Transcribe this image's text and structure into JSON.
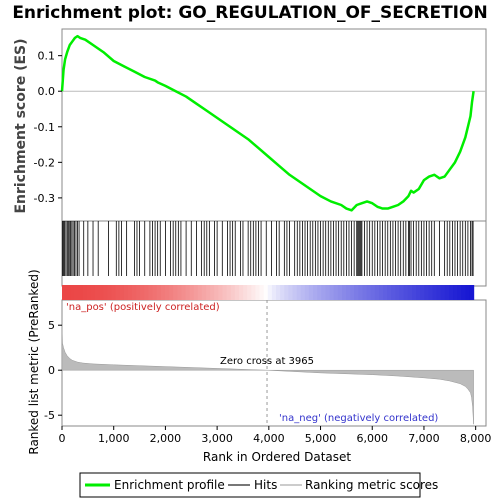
{
  "chart_data": {
    "type": "line",
    "title": "Enrichment plot: GO_REGULATION_OF_SECRETION",
    "xlabel": "Rank in Ordered Dataset",
    "enrichment_panel": {
      "ylabel": "Enrichment score (ES)",
      "xlim": [
        0,
        8200
      ],
      "ylim": [
        -0.365,
        0.175
      ],
      "yticks": [
        0.1,
        0.0,
        -0.1,
        -0.2,
        -0.3
      ],
      "ytick_labels": [
        "0.1",
        "0.0",
        "-0.1",
        "-0.2",
        "-0.3"
      ],
      "series": [
        {
          "name": "Enrichment profile",
          "color": "#00ee00",
          "x": [
            0,
            30,
            60,
            100,
            150,
            200,
            250,
            300,
            350,
            450,
            600,
            800,
            1000,
            1200,
            1400,
            1600,
            1800,
            1850,
            2000,
            2200,
            2400,
            2600,
            2800,
            3000,
            3200,
            3400,
            3600,
            3800,
            4000,
            4200,
            4400,
            4600,
            4800,
            5000,
            5200,
            5400,
            5500,
            5600,
            5700,
            5800,
            5900,
            6000,
            6100,
            6200,
            6300,
            6400,
            6500,
            6600,
            6700,
            6750,
            6800,
            6900,
            7000,
            7100,
            7200,
            7300,
            7400,
            7500,
            7600,
            7700,
            7750,
            7800,
            7850,
            7900,
            7930,
            7960
          ],
          "y": [
            0.0,
            0.06,
            0.09,
            0.11,
            0.13,
            0.14,
            0.15,
            0.155,
            0.15,
            0.145,
            0.13,
            0.11,
            0.085,
            0.07,
            0.055,
            0.04,
            0.03,
            0.025,
            0.015,
            0.0,
            -0.015,
            -0.035,
            -0.055,
            -0.075,
            -0.095,
            -0.115,
            -0.135,
            -0.16,
            -0.185,
            -0.21,
            -0.235,
            -0.255,
            -0.275,
            -0.295,
            -0.31,
            -0.32,
            -0.33,
            -0.335,
            -0.32,
            -0.315,
            -0.31,
            -0.315,
            -0.325,
            -0.33,
            -0.33,
            -0.325,
            -0.32,
            -0.31,
            -0.295,
            -0.28,
            -0.285,
            -0.275,
            -0.25,
            -0.24,
            -0.235,
            -0.245,
            -0.24,
            -0.22,
            -0.2,
            -0.17,
            -0.15,
            -0.13,
            -0.1,
            -0.07,
            -0.03,
            0.0
          ]
        }
      ]
    },
    "hits_panel": {
      "series_name": "Hits",
      "hit_positions": [
        10,
        30,
        50,
        75,
        100,
        120,
        140,
        165,
        190,
        215,
        240,
        270,
        300,
        330,
        420,
        500,
        600,
        700,
        900,
        1050,
        1100,
        1150,
        1250,
        1400,
        1450,
        1500,
        1600,
        1700,
        1750,
        1800,
        1850,
        1900,
        2000,
        2100,
        2150,
        2200,
        2250,
        2300,
        2400,
        2500,
        2600,
        2700,
        2750,
        2800,
        2850,
        2950,
        3000,
        3100,
        3200,
        3250,
        3300,
        3350,
        3450,
        3500,
        3600,
        3650,
        3700,
        3750,
        3800,
        3850,
        3950,
        4050,
        4150,
        4200,
        4300,
        4350,
        4400,
        4500,
        4550,
        4600,
        4650,
        4700,
        4750,
        4800,
        4850,
        4900,
        4950,
        5000,
        5050,
        5100,
        5150,
        5200,
        5250,
        5300,
        5350,
        5400,
        5450,
        5500,
        5550,
        5600,
        5650,
        5700,
        5720,
        5740,
        5760,
        5780,
        5800,
        5850,
        5900,
        5950,
        6000,
        6050,
        6100,
        6150,
        6200,
        6250,
        6300,
        6350,
        6400,
        6450,
        6500,
        6550,
        6600,
        6650,
        6700,
        6720,
        6750,
        6800,
        6850,
        6900,
        6950,
        7000,
        7050,
        7100,
        7150,
        7200,
        7300,
        7400,
        7450,
        7500,
        7550,
        7600,
        7650,
        7700,
        7750,
        7800,
        7850,
        7900,
        7930,
        7950
      ]
    },
    "ranking_panel": {
      "series_name": "Ranking metric scores",
      "ylabel": "Ranked list metric (PreRanked)",
      "ylim": [
        -6.2,
        7.8
      ],
      "yticks": [
        5,
        0,
        -5
      ],
      "ytick_labels": [
        "5",
        "0",
        "-5"
      ],
      "profile_rank": [
        0,
        10,
        30,
        60,
        100,
        150,
        200,
        300,
        400,
        600,
        1000,
        1500,
        2000,
        3000,
        3965,
        5000,
        6000,
        6500,
        7000,
        7300,
        7500,
        7700,
        7800,
        7850,
        7900,
        7920,
        7940,
        7960
      ],
      "profile_score": [
        5.0,
        3.0,
        2.5,
        2.0,
        1.6,
        1.3,
        1.1,
        0.9,
        0.8,
        0.7,
        0.6,
        0.5,
        0.4,
        0.2,
        0.0,
        -0.3,
        -0.5,
        -0.65,
        -0.85,
        -1.0,
        -1.2,
        -1.5,
        -1.8,
        -2.1,
        -2.5,
        -3.0,
        -4.0,
        -6.0
      ],
      "zero_cross_rank": 3965,
      "zero_cross_label": "Zero cross at 3965",
      "pos_label": "'na_pos' (positively correlated)",
      "neg_label": "'na_neg' (negatively correlated)"
    },
    "xticks": [
      0,
      1000,
      2000,
      3000,
      4000,
      5000,
      6000,
      7000,
      8000
    ],
    "xtick_labels": [
      "0",
      "1,000",
      "2,000",
      "3,000",
      "4,000",
      "5,000",
      "6,000",
      "7,000",
      "8,000"
    ],
    "legend": {
      "placement": "bottom",
      "items": [
        {
          "label": "Enrichment profile",
          "color": "#00ee00"
        },
        {
          "label": "Hits",
          "color": "#777777"
        },
        {
          "label": "Ranking metric scores",
          "color": "#cccccc"
        }
      ]
    }
  }
}
